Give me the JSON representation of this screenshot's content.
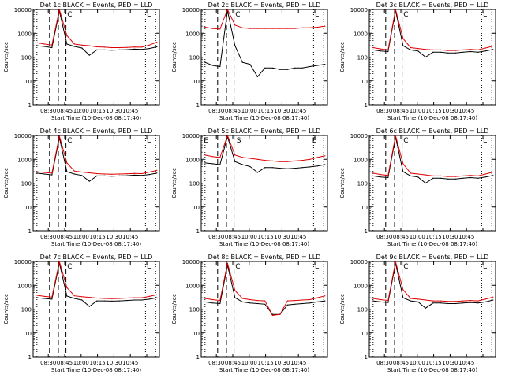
{
  "colors": {
    "events": "#000000",
    "lld": "#dd0000",
    "axes": "#000000",
    "background": "#ffffff"
  },
  "chart_data": [
    {
      "type": "line",
      "title": "Det 1c BLACK = Events, RED = LLD",
      "xlabel": "Start Time (10-Dec-08 08:17:40)",
      "ylabel": "Counts/sec",
      "y_scale": "log",
      "ylim": [
        1,
        10000
      ],
      "xticks": [
        "08:30",
        "08:45",
        "10:00",
        "10:15",
        "10:30",
        "10:45"
      ],
      "yticks": [
        "1",
        "10",
        "100",
        "1000",
        "10000"
      ],
      "marker_letters": [
        "C",
        "L"
      ],
      "series": [
        {
          "name": "Events",
          "color": "#000000",
          "values": [
            300,
            280,
            250,
            8500,
            350,
            280,
            240,
            120,
            200,
            200,
            195,
            200,
            205,
            215,
            210,
            230,
            270
          ]
        },
        {
          "name": "LLD",
          "color": "#dd0000",
          "values": [
            400,
            350,
            320,
            9800,
            800,
            350,
            320,
            300,
            270,
            260,
            250,
            250,
            255,
            265,
            260,
            320,
            420
          ]
        }
      ]
    },
    {
      "type": "line",
      "title": "Det 2c BLACK = Events, RED = LLD",
      "xlabel": "Start Time (10-Dec-08 08:17:40)",
      "ylabel": "Counts/sec",
      "y_scale": "log",
      "ylim": [
        1,
        10000
      ],
      "xticks": [
        "08:30",
        "08:45",
        "10:00",
        "10:15",
        "10:30",
        "10:45"
      ],
      "yticks": [
        "1",
        "10",
        "100",
        "1000",
        "10000"
      ],
      "marker_letters": [
        "C",
        "L"
      ],
      "series": [
        {
          "name": "Events",
          "color": "#000000",
          "values": [
            60,
            45,
            40,
            9000,
            300,
            60,
            50,
            15,
            35,
            35,
            30,
            30,
            35,
            35,
            40,
            45,
            50
          ]
        },
        {
          "name": "LLD",
          "color": "#dd0000",
          "values": [
            1800,
            1600,
            1500,
            10000,
            2200,
            1700,
            1600,
            1600,
            1600,
            1600,
            1600,
            1600,
            1600,
            1700,
            1700,
            1800,
            2000
          ]
        }
      ]
    },
    {
      "type": "line",
      "title": "Det 3c BLACK = Events, RED = LLD",
      "xlabel": "Start Time (10-Dec-08 08:17:40)",
      "ylabel": "Counts/sec",
      "y_scale": "log",
      "ylim": [
        1,
        10000
      ],
      "xticks": [
        "08:30",
        "08:45",
        "10:00",
        "10:15",
        "10:30",
        "10:45"
      ],
      "yticks": [
        "1",
        "10",
        "100",
        "1000",
        "10000"
      ],
      "marker_letters": [
        "C",
        "L"
      ],
      "series": [
        {
          "name": "Events",
          "color": "#000000",
          "values": [
            200,
            180,
            170,
            9000,
            300,
            200,
            180,
            100,
            160,
            160,
            150,
            150,
            160,
            170,
            160,
            180,
            210
          ]
        },
        {
          "name": "LLD",
          "color": "#dd0000",
          "values": [
            250,
            220,
            200,
            10000,
            600,
            250,
            230,
            210,
            200,
            200,
            190,
            190,
            200,
            210,
            200,
            240,
            290
          ]
        }
      ]
    },
    {
      "type": "line",
      "title": "Det 4c BLACK = Events, RED = LLD",
      "xlabel": "Start Time (10-Dec-08 08:17:40)",
      "ylabel": "Counts/sec",
      "y_scale": "log",
      "ylim": [
        1,
        10000
      ],
      "xticks": [
        "08:30",
        "08:45",
        "10:00",
        "10:15",
        "10:30",
        "10:45"
      ],
      "yticks": [
        "1",
        "10",
        "100",
        "1000",
        "10000"
      ],
      "marker_letters": [
        "C",
        "L"
      ],
      "series": [
        {
          "name": "Events",
          "color": "#000000",
          "values": [
            260,
            240,
            220,
            8000,
            300,
            240,
            210,
            120,
            200,
            200,
            195,
            200,
            205,
            215,
            210,
            230,
            260
          ]
        },
        {
          "name": "LLD",
          "color": "#dd0000",
          "values": [
            300,
            280,
            260,
            9500,
            700,
            320,
            290,
            270,
            250,
            240,
            235,
            240,
            245,
            255,
            250,
            290,
            340
          ]
        }
      ]
    },
    {
      "type": "line",
      "title": "Det 5c BLACK = Events, RED = LLD",
      "xlabel": "Start Time (10-Dec-08 08:17:40)",
      "ylabel": "Counts/sec",
      "y_scale": "log",
      "ylim": [
        1,
        10000
      ],
      "xticks": [
        "08:30",
        "08:45",
        "10:00",
        "10:15",
        "10:30",
        "10:45"
      ],
      "yticks": [
        "1",
        "10",
        "100",
        "1000",
        "10000"
      ],
      "marker_letters": [
        "E",
        "S",
        "E"
      ],
      "series": [
        {
          "name": "Events",
          "color": "#000000",
          "values": [
            700,
            650,
            600,
            9000,
            800,
            600,
            500,
            280,
            450,
            450,
            420,
            400,
            420,
            450,
            480,
            520,
            600
          ]
        },
        {
          "name": "LLD",
          "color": "#dd0000",
          "values": [
            1500,
            1300,
            1200,
            10000,
            1500,
            1200,
            1100,
            1000,
            900,
            850,
            800,
            800,
            850,
            900,
            1000,
            1200,
            1400
          ]
        }
      ]
    },
    {
      "type": "line",
      "title": "Det 6c BLACK = Events, RED = LLD",
      "xlabel": "Start Time (10-Dec-08 08:17:40)",
      "ylabel": "Counts/sec",
      "y_scale": "log",
      "ylim": [
        1,
        10000
      ],
      "xticks": [
        "08:30",
        "08:45",
        "10:00",
        "10:15",
        "10:30",
        "10:45"
      ],
      "yticks": [
        "1",
        "10",
        "100",
        "1000",
        "10000"
      ],
      "marker_letters": [
        "C",
        "L"
      ],
      "series": [
        {
          "name": "Events",
          "color": "#000000",
          "values": [
            200,
            180,
            170,
            8500,
            300,
            200,
            180,
            100,
            160,
            160,
            150,
            150,
            160,
            170,
            160,
            180,
            210
          ]
        },
        {
          "name": "LLD",
          "color": "#dd0000",
          "values": [
            260,
            230,
            210,
            9800,
            650,
            260,
            240,
            220,
            200,
            200,
            190,
            190,
            200,
            210,
            200,
            240,
            290
          ]
        }
      ]
    },
    {
      "type": "line",
      "title": "Det 7c BLACK = Events, RED = LLD",
      "xlabel": "Start Time (10-Dec-08 08:17:40)",
      "ylabel": "Counts/sec",
      "y_scale": "log",
      "ylim": [
        1,
        10000
      ],
      "xticks": [
        "08:30",
        "08:45",
        "10:00",
        "10:15",
        "10:30",
        "10:45"
      ],
      "yticks": [
        "1",
        "10",
        "100",
        "1000",
        "10000"
      ],
      "marker_letters": [
        "C",
        "L"
      ],
      "series": [
        {
          "name": "Events",
          "color": "#000000",
          "values": [
            300,
            280,
            260,
            8500,
            350,
            280,
            240,
            130,
            220,
            220,
            215,
            220,
            230,
            240,
            240,
            260,
            300
          ]
        },
        {
          "name": "LLD",
          "color": "#dd0000",
          "values": [
            380,
            340,
            320,
            9800,
            800,
            360,
            330,
            310,
            290,
            280,
            275,
            280,
            290,
            300,
            300,
            340,
            400
          ]
        }
      ]
    },
    {
      "type": "line",
      "title": "Det 8c BLACK = Events, RED = LLD",
      "xlabel": "Start Time (10-Dec-08 08:17:40)",
      "ylabel": "Counts/sec",
      "y_scale": "log",
      "ylim": [
        1,
        10000
      ],
      "xticks": [
        "08:30",
        "08:45",
        "10:00",
        "10:15",
        "10:30",
        "10:45"
      ],
      "yticks": [
        "1",
        "10",
        "100",
        "1000",
        "10000"
      ],
      "marker_letters": [
        "C",
        "L"
      ],
      "series": [
        {
          "name": "Events",
          "color": "#000000",
          "values": [
            200,
            180,
            170,
            7000,
            300,
            200,
            180,
            170,
            160,
            60,
            60,
            150,
            160,
            170,
            180,
            200,
            220
          ]
        },
        {
          "name": "LLD",
          "color": "#dd0000",
          "values": [
            280,
            250,
            230,
            8500,
            600,
            280,
            250,
            230,
            220,
            55,
            60,
            220,
            230,
            240,
            250,
            300,
            360
          ]
        }
      ]
    },
    {
      "type": "line",
      "title": "Det 9c BLACK = Events, RED = LLD",
      "xlabel": "Start Time (10-Dec-08 08:17:40)",
      "ylabel": "Counts/sec",
      "y_scale": "log",
      "ylim": [
        1,
        10000
      ],
      "xticks": [
        "08:30",
        "08:45",
        "10:00",
        "10:15",
        "10:30",
        "10:45"
      ],
      "yticks": [
        "1",
        "10",
        "100",
        "1000",
        "10000"
      ],
      "marker_letters": [
        "C",
        "L"
      ],
      "series": [
        {
          "name": "Events",
          "color": "#000000",
          "values": [
            220,
            200,
            190,
            8500,
            300,
            220,
            200,
            110,
            180,
            180,
            170,
            170,
            180,
            190,
            180,
            200,
            240
          ]
        },
        {
          "name": "LLD",
          "color": "#dd0000",
          "values": [
            280,
            250,
            230,
            9800,
            650,
            280,
            260,
            240,
            220,
            220,
            210,
            210,
            220,
            230,
            220,
            260,
            320
          ]
        }
      ]
    }
  ]
}
